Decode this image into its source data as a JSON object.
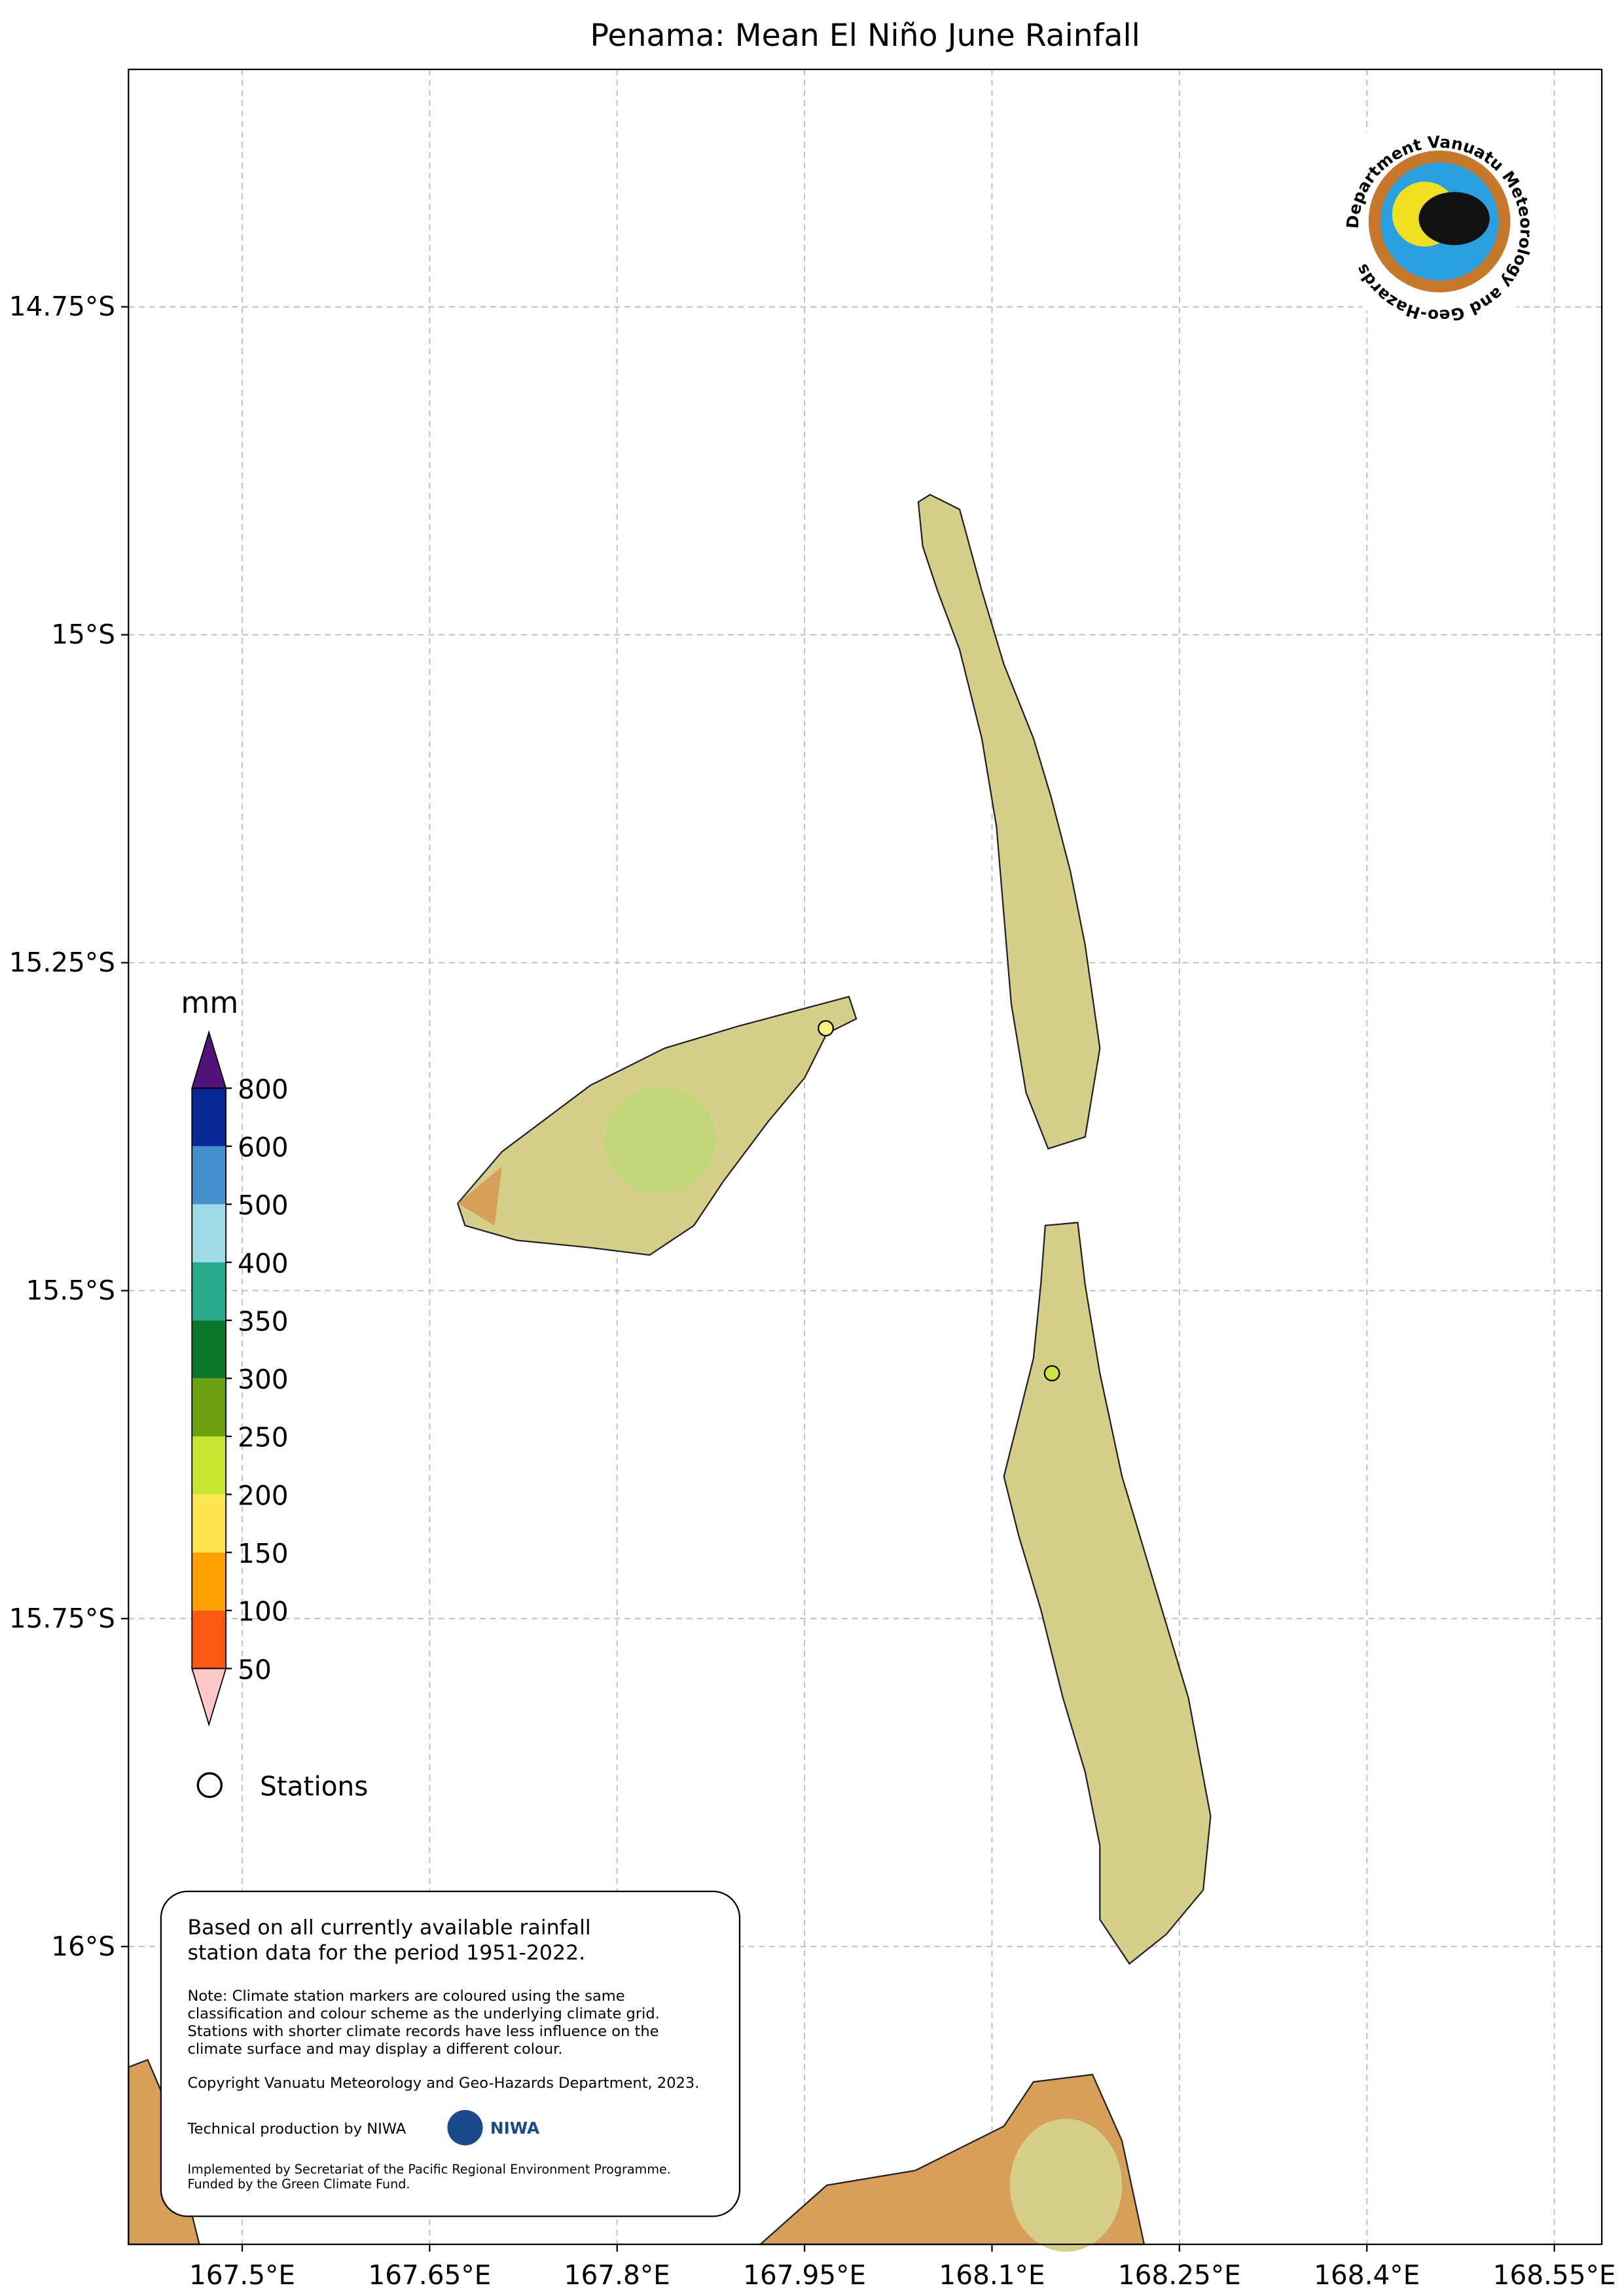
{
  "title": "Penama: Mean El Niño June Rainfall",
  "map": {
    "xlim": [
      167.409,
      168.588
    ],
    "ylim": [
      -16.227,
      -14.569
    ],
    "xticks": [
      {
        "value": 167.5,
        "label": "167.5°E"
      },
      {
        "value": 167.65,
        "label": "167.65°E"
      },
      {
        "value": 167.8,
        "label": "167.8°E"
      },
      {
        "value": 167.95,
        "label": "167.95°E"
      },
      {
        "value": 168.1,
        "label": "168.1°E"
      },
      {
        "value": 168.25,
        "label": "168.25°E"
      },
      {
        "value": 168.4,
        "label": "168.4°E"
      },
      {
        "value": 168.55,
        "label": "168.55°E"
      }
    ],
    "yticks": [
      {
        "value": -14.75,
        "label": "14.75°S"
      },
      {
        "value": -15,
        "label": "15°S"
      },
      {
        "value": -15.25,
        "label": "15.25°S"
      },
      {
        "value": -15.5,
        "label": "15.5°S"
      },
      {
        "value": -15.75,
        "label": "15.75°S"
      },
      {
        "value": -16,
        "label": "16°S"
      }
    ],
    "grid": true,
    "stations": [
      {
        "lon": 167.967,
        "lat": -15.3,
        "color": "#fff27a"
      },
      {
        "lon": 168.148,
        "lat": -15.563,
        "color": "#c8e63c"
      }
    ]
  },
  "colorbar": {
    "label": "mm",
    "levels": [
      50,
      100,
      150,
      200,
      250,
      300,
      350,
      400,
      500,
      600,
      800
    ],
    "colors": [
      "#ff5a14",
      "#ffa000",
      "#ffe650",
      "#c8e632",
      "#6ea014",
      "#0a7828",
      "#28aa8c",
      "#a0dce6",
      "#4690cd",
      "#0a2896"
    ],
    "under_color": "#ffc8c8",
    "over_color": "#50147a"
  },
  "legend": {
    "stations": "Stations"
  },
  "info": {
    "summary": [
      "Based on all currently available rainfall",
      "station data for the period 1951-2022."
    ],
    "note": [
      "Note: Climate station markers are coloured using the same",
      "classification and colour scheme as the underlying climate grid.",
      "Stations with shorter climate records have less influence on the",
      "climate surface and may display a different colour."
    ],
    "copyright": "Copyright Vanuatu Meteorology and Geo-Hazards Department, 2023.",
    "production": "Technical production by NIWA",
    "niwa": "NIWA",
    "funding": [
      "Implemented by Secretariat of the Pacific Regional Environment Programme.",
      "Funded by the Green Climate Fund."
    ]
  },
  "logo": {
    "text": "Department Vanuatu Meteorology and Geo-Hazards"
  }
}
